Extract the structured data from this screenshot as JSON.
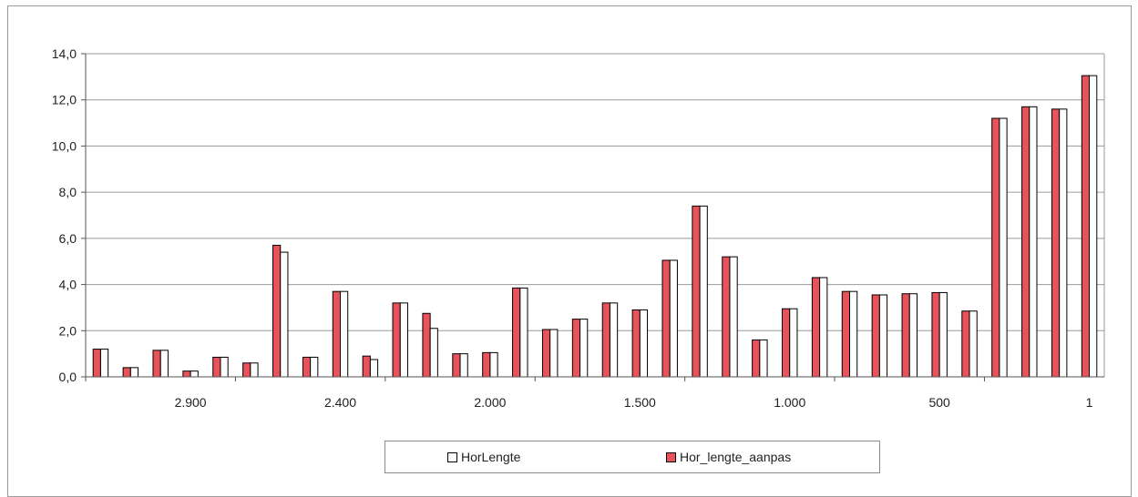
{
  "chart_data": {
    "type": "bar",
    "title": "",
    "xlabel": "",
    "ylabel": "",
    "ylim": [
      0,
      14
    ],
    "y_ticks": [
      "0,0",
      "2,0",
      "4,0",
      "6,0",
      "8,0",
      "10,0",
      "12,0",
      "14,0"
    ],
    "x_tick_labels": [
      "2.900",
      "2.400",
      "2.000",
      "1.500",
      "1.000",
      "500",
      "1"
    ],
    "grid": "horizontal",
    "legend_position": "bottom",
    "series": [
      {
        "name": "Hor_lengte_aanpas",
        "color": "#e8525a",
        "values": [
          1.2,
          0.4,
          1.15,
          0.25,
          0.85,
          0.6,
          5.7,
          0.85,
          3.7,
          0.9,
          3.2,
          2.75,
          1.0,
          1.05,
          3.85,
          2.05,
          2.5,
          3.2,
          2.9,
          5.05,
          7.4,
          5.2,
          1.6,
          2.95,
          4.3,
          3.7,
          3.55,
          3.6,
          3.65,
          2.85,
          11.2,
          11.7,
          11.6,
          13.05
        ]
      },
      {
        "name": "HorLengte",
        "color": "#ffffff",
        "values": [
          1.2,
          0.4,
          1.15,
          0.25,
          0.85,
          0.6,
          5.4,
          0.85,
          3.7,
          0.75,
          3.2,
          2.1,
          1.0,
          1.05,
          3.85,
          2.05,
          2.5,
          3.2,
          2.9,
          5.05,
          7.4,
          5.2,
          1.6,
          2.95,
          4.3,
          3.7,
          3.55,
          3.6,
          3.65,
          2.85,
          11.2,
          11.7,
          11.6,
          13.05
        ]
      }
    ]
  },
  "legend": {
    "items": [
      {
        "label": "HorLengte",
        "color": "#ffffff"
      },
      {
        "label": "Hor_lengte_aanpas",
        "color": "#e8525a"
      }
    ]
  }
}
